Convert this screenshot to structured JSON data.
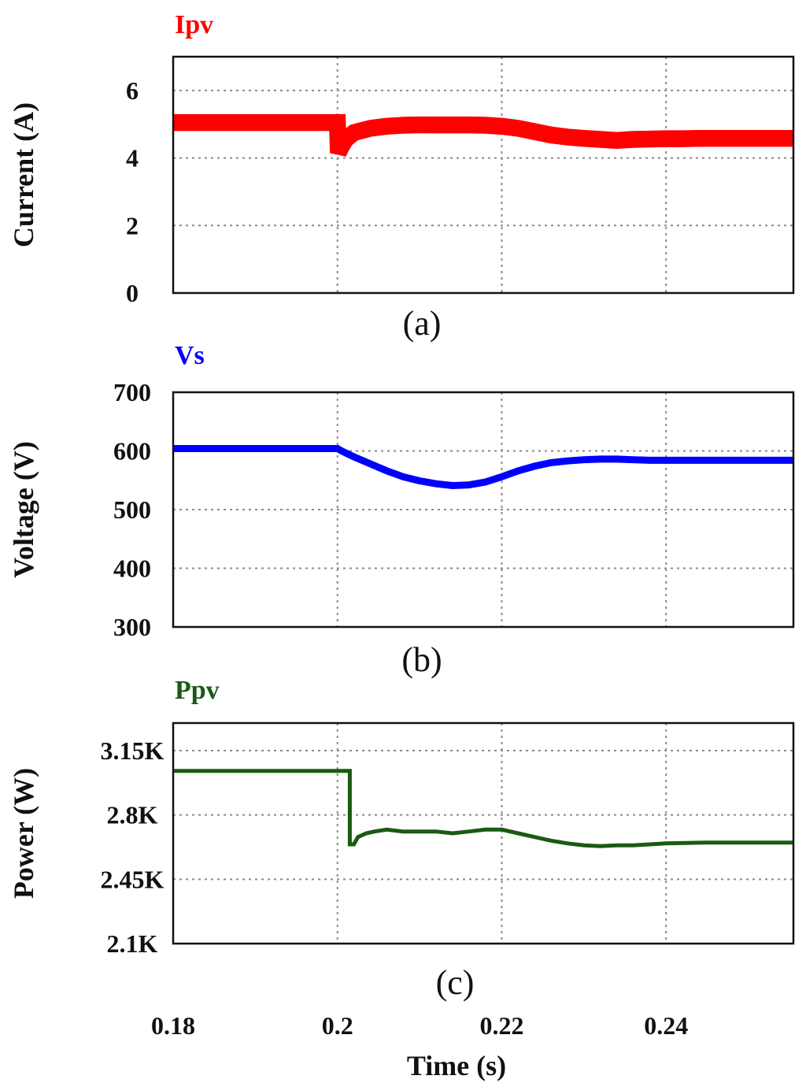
{
  "chart_data": [
    {
      "type": "line",
      "signal_label": "Ipv",
      "caption": "(a)",
      "ylabel": "Current (A)",
      "color": "#ff0000",
      "ylim": [
        0,
        7
      ],
      "yticks": [
        0,
        2,
        4,
        6
      ],
      "ytick_labels": [
        "0",
        "2",
        "4",
        "6"
      ],
      "xlim": [
        0.18,
        0.2555
      ],
      "xgrid": [
        0.2,
        0.22,
        0.24
      ],
      "band": 0.5,
      "x": [
        0.18,
        0.2,
        0.2001,
        0.2005,
        0.201,
        0.202,
        0.204,
        0.206,
        0.208,
        0.21,
        0.212,
        0.214,
        0.216,
        0.218,
        0.22,
        0.222,
        0.224,
        0.226,
        0.228,
        0.23,
        0.232,
        0.234,
        0.236,
        0.238,
        0.24,
        0.242,
        0.244,
        0.246,
        0.248,
        0.25,
        0.2555
      ],
      "y": [
        5.05,
        5.05,
        4.15,
        4.35,
        4.55,
        4.75,
        4.88,
        4.94,
        4.97,
        4.98,
        4.98,
        4.98,
        4.98,
        4.97,
        4.94,
        4.88,
        4.78,
        4.68,
        4.62,
        4.58,
        4.55,
        4.52,
        4.55,
        4.56,
        4.57,
        4.57,
        4.58,
        4.58,
        4.58,
        4.58,
        4.58
      ]
    },
    {
      "type": "line",
      "signal_label": "Vs",
      "caption": "(b)",
      "ylabel": "Voltage (V)",
      "color": "#0000ff",
      "ylim": [
        300,
        700
      ],
      "yticks": [
        300,
        400,
        500,
        600,
        700
      ],
      "ytick_labels": [
        "300",
        "400",
        "500",
        "600",
        "700"
      ],
      "xlim": [
        0.18,
        0.2555
      ],
      "xgrid": [
        0.2,
        0.22,
        0.24
      ],
      "band": 12,
      "x": [
        0.18,
        0.2,
        0.2005,
        0.202,
        0.204,
        0.206,
        0.208,
        0.21,
        0.212,
        0.214,
        0.216,
        0.218,
        0.22,
        0.222,
        0.224,
        0.226,
        0.228,
        0.23,
        0.232,
        0.234,
        0.236,
        0.238,
        0.24,
        0.245,
        0.25,
        0.2555
      ],
      "y": [
        604,
        604,
        600,
        590,
        578,
        566,
        556,
        549,
        544,
        541,
        542,
        547,
        556,
        566,
        574,
        580,
        583,
        585,
        586,
        586,
        585,
        584,
        584,
        584,
        584,
        584
      ]
    },
    {
      "type": "line",
      "signal_label": "Ppv",
      "caption": "(c)",
      "ylabel": "Power (W)",
      "color": "#1a5a12",
      "ylim": [
        2100,
        3300
      ],
      "yticks": [
        2100,
        2450,
        2800,
        3150
      ],
      "ytick_labels": [
        "2.1K",
        "2.45K",
        "2.8K",
        "3.15K"
      ],
      "xlim": [
        0.18,
        0.2555
      ],
      "xgrid": [
        0.2,
        0.22,
        0.24
      ],
      "band": 0,
      "x": [
        0.18,
        0.2015,
        0.2015,
        0.202,
        0.2025,
        0.2035,
        0.2045,
        0.206,
        0.208,
        0.21,
        0.212,
        0.214,
        0.216,
        0.218,
        0.22,
        0.222,
        0.224,
        0.226,
        0.228,
        0.23,
        0.232,
        0.234,
        0.236,
        0.238,
        0.24,
        0.245,
        0.25,
        0.2555
      ],
      "y": [
        3040,
        3040,
        2640,
        2640,
        2680,
        2700,
        2710,
        2720,
        2710,
        2710,
        2710,
        2700,
        2710,
        2720,
        2720,
        2700,
        2680,
        2660,
        2645,
        2635,
        2630,
        2635,
        2635,
        2640,
        2645,
        2650,
        2650,
        2650
      ]
    }
  ],
  "x_axis": {
    "ticks": [
      0.18,
      0.2,
      0.22,
      0.24
    ],
    "tick_labels": [
      "0.18",
      "0.2",
      "0.22",
      "0.24"
    ],
    "label": "Time (s)"
  }
}
